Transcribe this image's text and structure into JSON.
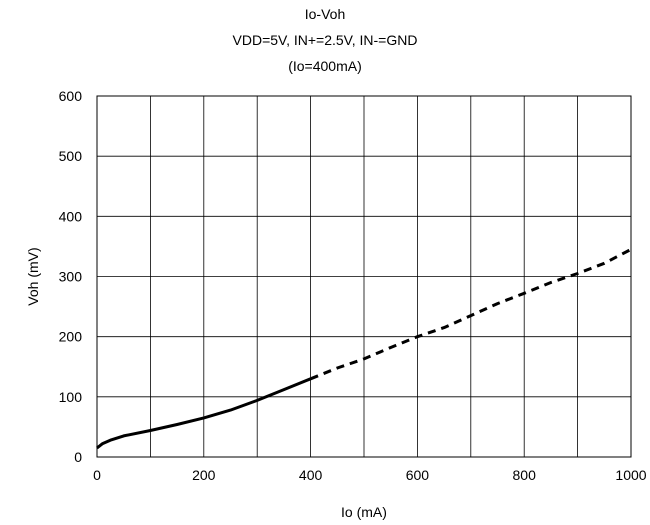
{
  "chart_data": {
    "type": "line",
    "title": "Io-Voh",
    "subtitle": "VDD=5V, IN+=2.5V, IN-=GND",
    "subtitle2": "(Io=400mA)",
    "xlabel": "Io (mA)",
    "ylabel": "Voh (mV)",
    "xlim": [
      0,
      1000
    ],
    "ylim": [
      0,
      600
    ],
    "xticks": [
      0,
      200,
      400,
      600,
      800,
      1000
    ],
    "yticks": [
      0,
      100,
      200,
      300,
      400,
      500,
      600
    ],
    "grid": true,
    "series": [
      {
        "style": "solid",
        "color": "#000000",
        "x": [
          0,
          10,
          25,
          50,
          100,
          150,
          200,
          250,
          300,
          350,
          400
        ],
        "y": [
          15,
          22,
          28,
          35,
          44,
          54,
          65,
          78,
          94,
          112,
          130
        ]
      },
      {
        "style": "dashed",
        "color": "#000000",
        "x": [
          400,
          450,
          500,
          550,
          600,
          650,
          700,
          750,
          800,
          850,
          900,
          950,
          1000
        ],
        "y": [
          130,
          148,
          163,
          182,
          200,
          215,
          235,
          255,
          272,
          290,
          305,
          322,
          345
        ]
      }
    ]
  }
}
